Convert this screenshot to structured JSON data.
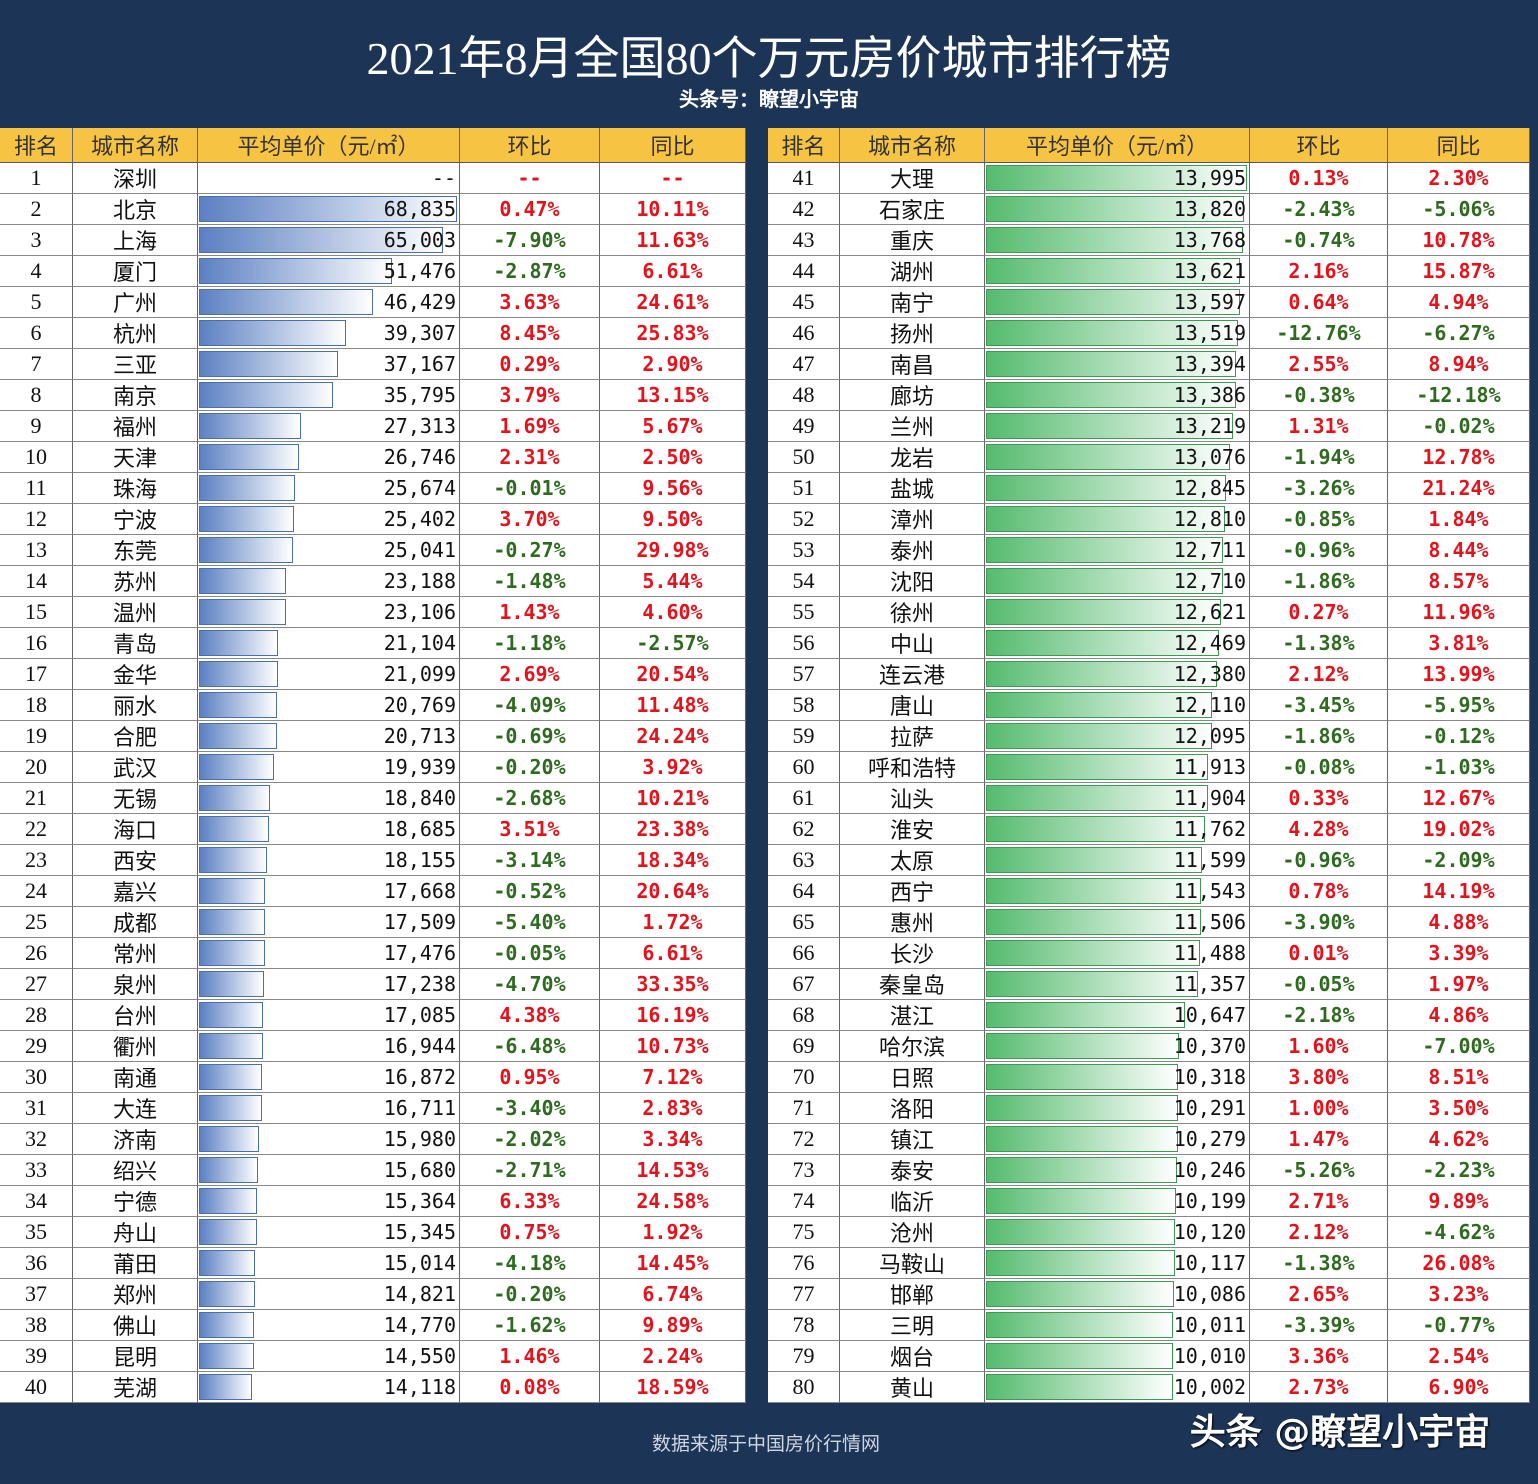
{
  "header": {
    "title": "2021年8月全国80个万元房价城市排行榜",
    "subtitle": "头条号：瞭望小宇宙"
  },
  "columns": [
    "排名",
    "城市名称",
    "平均单价（元/㎡）",
    "环比",
    "同比"
  ],
  "rows": [
    [
      1,
      "深圳",
      "--",
      "--",
      "--"
    ],
    [
      2,
      "北京",
      {
        "value": 68835,
        "label": "68,835"
      },
      "0.47%",
      "10.11%"
    ],
    [
      3,
      "上海",
      {
        "value": 65003,
        "label": "65,003"
      },
      "-7.90%",
      "11.63%"
    ],
    [
      4,
      "厦门",
      {
        "value": 51476,
        "label": "51,476"
      },
      "-2.87%",
      "6.61%"
    ],
    [
      5,
      "广州",
      {
        "value": 46429,
        "label": "46,429"
      },
      "3.63%",
      "24.61%"
    ],
    [
      6,
      "杭州",
      {
        "value": 39307,
        "label": "39,307"
      },
      "8.45%",
      "25.83%"
    ],
    [
      7,
      "三亚",
      {
        "value": 37167,
        "label": "37,167"
      },
      "0.29%",
      "2.90%"
    ],
    [
      8,
      "南京",
      {
        "value": 35795,
        "label": "35,795"
      },
      "3.79%",
      "13.15%"
    ],
    [
      9,
      "福州",
      {
        "value": 27313,
        "label": "27,313"
      },
      "1.69%",
      "5.67%"
    ],
    [
      10,
      "天津",
      {
        "value": 26746,
        "label": "26,746"
      },
      "2.31%",
      "2.50%"
    ],
    [
      11,
      "珠海",
      {
        "value": 25674,
        "label": "25,674"
      },
      "-0.01%",
      "9.56%"
    ],
    [
      12,
      "宁波",
      {
        "value": 25402,
        "label": "25,402"
      },
      "3.70%",
      "9.50%"
    ],
    [
      13,
      "东莞",
      {
        "value": 25041,
        "label": "25,041"
      },
      "-0.27%",
      "29.98%"
    ],
    [
      14,
      "苏州",
      {
        "value": 23188,
        "label": "23,188"
      },
      "-1.48%",
      "5.44%"
    ],
    [
      15,
      "温州",
      {
        "value": 23106,
        "label": "23,106"
      },
      "1.43%",
      "4.60%"
    ],
    [
      16,
      "青岛",
      {
        "value": 21104,
        "label": "21,104"
      },
      "-1.18%",
      "-2.57%"
    ],
    [
      17,
      "金华",
      {
        "value": 21099,
        "label": "21,099"
      },
      "2.69%",
      "20.54%"
    ],
    [
      18,
      "丽水",
      {
        "value": 20769,
        "label": "20,769"
      },
      "-4.09%",
      "11.48%"
    ],
    [
      19,
      "合肥",
      {
        "value": 20713,
        "label": "20,713"
      },
      "-0.69%",
      "24.24%"
    ],
    [
      20,
      "武汉",
      {
        "value": 19939,
        "label": "19,939"
      },
      "-0.20%",
      "3.92%"
    ],
    [
      21,
      "无锡",
      {
        "value": 18840,
        "label": "18,840"
      },
      "-2.68%",
      "10.21%"
    ],
    [
      22,
      "海口",
      {
        "value": 18685,
        "label": "18,685"
      },
      "3.51%",
      "23.38%"
    ],
    [
      23,
      "西安",
      {
        "value": 18155,
        "label": "18,155"
      },
      "-3.14%",
      "18.34%"
    ],
    [
      24,
      "嘉兴",
      {
        "value": 17668,
        "label": "17,668"
      },
      "-0.52%",
      "20.64%"
    ],
    [
      25,
      "成都",
      {
        "value": 17509,
        "label": "17,509"
      },
      "-5.40%",
      "1.72%"
    ],
    [
      26,
      "常州",
      {
        "value": 17476,
        "label": "17,476"
      },
      "-0.05%",
      "6.61%"
    ],
    [
      27,
      "泉州",
      {
        "value": 17238,
        "label": "17,238"
      },
      "-4.70%",
      "33.35%"
    ],
    [
      28,
      "台州",
      {
        "value": 17085,
        "label": "17,085"
      },
      "4.38%",
      "16.19%"
    ],
    [
      29,
      "衢州",
      {
        "value": 16944,
        "label": "16,944"
      },
      "-6.48%",
      "10.73%"
    ],
    [
      30,
      "南通",
      {
        "value": 16872,
        "label": "16,872"
      },
      "0.95%",
      "7.12%"
    ],
    [
      31,
      "大连",
      {
        "value": 16711,
        "label": "16,711"
      },
      "-3.40%",
      "2.83%"
    ],
    [
      32,
      "济南",
      {
        "value": 15980,
        "label": "15,980"
      },
      "-2.02%",
      "3.34%"
    ],
    [
      33,
      "绍兴",
      {
        "value": 15680,
        "label": "15,680"
      },
      "-2.71%",
      "14.53%"
    ],
    [
      34,
      "宁德",
      {
        "value": 15364,
        "label": "15,364"
      },
      "6.33%",
      "24.58%"
    ],
    [
      35,
      "舟山",
      {
        "value": 15345,
        "label": "15,345"
      },
      "0.75%",
      "1.92%"
    ],
    [
      36,
      "莆田",
      {
        "value": 15014,
        "label": "15,014"
      },
      "-4.18%",
      "14.45%"
    ],
    [
      37,
      "郑州",
      {
        "value": 14821,
        "label": "14,821"
      },
      "-0.20%",
      "6.74%"
    ],
    [
      38,
      "佛山",
      {
        "value": 14770,
        "label": "14,770"
      },
      "-1.62%",
      "9.89%"
    ],
    [
      39,
      "昆明",
      {
        "value": 14550,
        "label": "14,550"
      },
      "1.46%",
      "2.24%"
    ],
    [
      40,
      "芜湖",
      {
        "value": 14118,
        "label": "14,118"
      },
      "0.08%",
      "18.59%"
    ],
    [
      41,
      "大理",
      {
        "value": 13995,
        "label": "13,995"
      },
      "0.13%",
      "2.30%"
    ],
    [
      42,
      "石家庄",
      {
        "value": 13820,
        "label": "13,820"
      },
      "-2.43%",
      "-5.06%"
    ],
    [
      43,
      "重庆",
      {
        "value": 13768,
        "label": "13,768"
      },
      "-0.74%",
      "10.78%"
    ],
    [
      44,
      "湖州",
      {
        "value": 13621,
        "label": "13,621"
      },
      "2.16%",
      "15.87%"
    ],
    [
      45,
      "南宁",
      {
        "value": 13597,
        "label": "13,597"
      },
      "0.64%",
      "4.94%"
    ],
    [
      46,
      "扬州",
      {
        "value": 13519,
        "label": "13,519"
      },
      "-12.76%",
      "-6.27%"
    ],
    [
      47,
      "南昌",
      {
        "value": 13394,
        "label": "13,394"
      },
      "2.55%",
      "8.94%"
    ],
    [
      48,
      "廊坊",
      {
        "value": 13386,
        "label": "13,386"
      },
      "-0.38%",
      "-12.18%"
    ],
    [
      49,
      "兰州",
      {
        "value": 13219,
        "label": "13,219"
      },
      "1.31%",
      "-0.02%"
    ],
    [
      50,
      "龙岩",
      {
        "value": 13076,
        "label": "13,076"
      },
      "-1.94%",
      "12.78%"
    ],
    [
      51,
      "盐城",
      {
        "value": 12845,
        "label": "12,845"
      },
      "-3.26%",
      "21.24%"
    ],
    [
      52,
      "漳州",
      {
        "value": 12810,
        "label": "12,810"
      },
      "-0.85%",
      "1.84%"
    ],
    [
      53,
      "泰州",
      {
        "value": 12711,
        "label": "12,711"
      },
      "-0.96%",
      "8.44%"
    ],
    [
      54,
      "沈阳",
      {
        "value": 12710,
        "label": "12,710"
      },
      "-1.86%",
      "8.57%"
    ],
    [
      55,
      "徐州",
      {
        "value": 12621,
        "label": "12,621"
      },
      "0.27%",
      "11.96%"
    ],
    [
      56,
      "中山",
      {
        "value": 12469,
        "label": "12,469"
      },
      "-1.38%",
      "3.81%"
    ],
    [
      57,
      "连云港",
      {
        "value": 12380,
        "label": "12,380"
      },
      "2.12%",
      "13.99%"
    ],
    [
      58,
      "唐山",
      {
        "value": 12110,
        "label": "12,110"
      },
      "-3.45%",
      "-5.95%"
    ],
    [
      59,
      "拉萨",
      {
        "value": 12095,
        "label": "12,095"
      },
      "-1.86%",
      "-0.12%"
    ],
    [
      60,
      "呼和浩特",
      {
        "value": 11913,
        "label": "11,913"
      },
      "-0.08%",
      "-1.03%"
    ],
    [
      61,
      "汕头",
      {
        "value": 11904,
        "label": "11,904"
      },
      "0.33%",
      "12.67%"
    ],
    [
      62,
      "淮安",
      {
        "value": 11762,
        "label": "11,762"
      },
      "4.28%",
      "19.02%"
    ],
    [
      63,
      "太原",
      {
        "value": 11599,
        "label": "11,599"
      },
      "-0.96%",
      "-2.09%"
    ],
    [
      64,
      "西宁",
      {
        "value": 11543,
        "label": "11,543"
      },
      "0.78%",
      "14.19%"
    ],
    [
      65,
      "惠州",
      {
        "value": 11506,
        "label": "11,506"
      },
      "-3.90%",
      "4.88%"
    ],
    [
      66,
      "长沙",
      {
        "value": 11488,
        "label": "11,488"
      },
      "0.01%",
      "3.39%"
    ],
    [
      67,
      "秦皇岛",
      {
        "value": 11357,
        "label": "11,357"
      },
      "-0.05%",
      "1.97%"
    ],
    [
      68,
      "湛江",
      {
        "value": 10647,
        "label": "10,647"
      },
      "-2.18%",
      "4.86%"
    ],
    [
      69,
      "哈尔滨",
      {
        "value": 10370,
        "label": "10,370"
      },
      "1.60%",
      "-7.00%"
    ],
    [
      70,
      "日照",
      {
        "value": 10318,
        "label": "10,318"
      },
      "3.80%",
      "8.51%"
    ],
    [
      71,
      "洛阳",
      {
        "value": 10291,
        "label": "10,291"
      },
      "1.00%",
      "3.50%"
    ],
    [
      72,
      "镇江",
      {
        "value": 10279,
        "label": "10,279"
      },
      "1.47%",
      "4.62%"
    ],
    [
      73,
      "泰安",
      {
        "value": 10246,
        "label": "10,246"
      },
      "-5.26%",
      "-2.23%"
    ],
    [
      74,
      "临沂",
      {
        "value": 10199,
        "label": "10,199"
      },
      "2.71%",
      "9.89%"
    ],
    [
      75,
      "沧州",
      {
        "value": 10120,
        "label": "10,120"
      },
      "2.12%",
      "-4.62%"
    ],
    [
      76,
      "马鞍山",
      {
        "value": 10117,
        "label": "10,117"
      },
      "-1.38%",
      "26.08%"
    ],
    [
      77,
      "邯郸",
      {
        "value": 10086,
        "label": "10,086"
      },
      "2.65%",
      "3.23%"
    ],
    [
      78,
      "三明",
      {
        "value": 10011,
        "label": "10,011"
      },
      "-3.39%",
      "-0.77%"
    ],
    [
      79,
      "烟台",
      {
        "value": 10010,
        "label": "10,010"
      },
      "3.36%",
      "2.54%"
    ],
    [
      80,
      "黄山",
      {
        "value": 10002,
        "label": "10,002"
      },
      "2.73%",
      "6.90%"
    ]
  ],
  "footer": {
    "source": "数据来源于中国房价行情网",
    "watermark": "头条 @瞭望小宇宙"
  }
}
